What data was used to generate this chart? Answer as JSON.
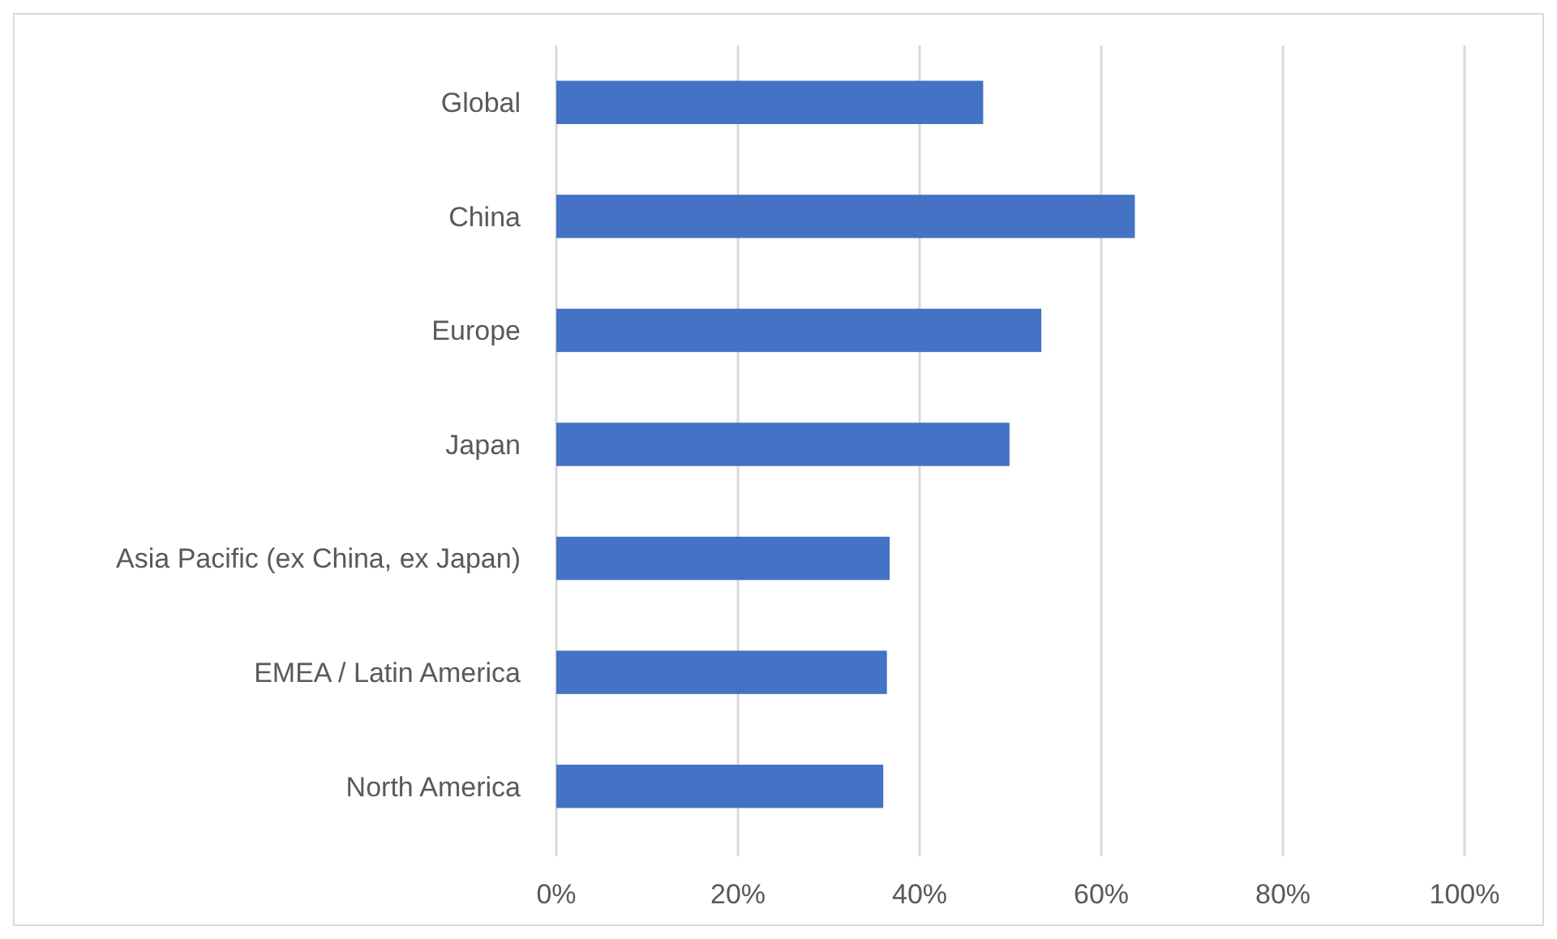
{
  "chart_data": {
    "type": "bar",
    "orientation": "horizontal",
    "categories": [
      "Global",
      "China",
      "Europe",
      "Japan",
      "Asia Pacific (ex China, ex Japan)",
      "EMEA / Latin America",
      "North America"
    ],
    "values": [
      47,
      63.7,
      53.4,
      49.9,
      36.7,
      36.4,
      36.0
    ],
    "color": "#4472c4",
    "xlim": [
      0,
      100
    ],
    "xticks": [
      {
        "value": 0,
        "label": "0%"
      },
      {
        "value": 20,
        "label": "20%"
      },
      {
        "value": 40,
        "label": "40%"
      },
      {
        "value": 60,
        "label": "60%"
      },
      {
        "value": 80,
        "label": "80%"
      },
      {
        "value": 100,
        "label": "100%"
      }
    ],
    "grid": "x"
  }
}
